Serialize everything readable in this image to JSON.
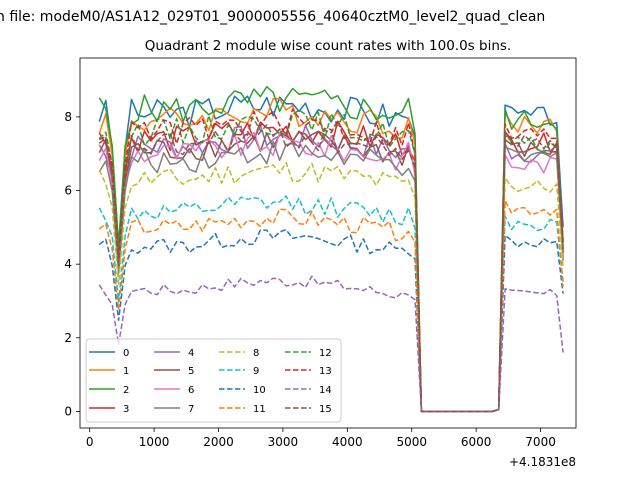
{
  "figure": {
    "suptitle": "n file: modeM0/AS1A12_029T01_9000005556_40640cztM0_level2_quad_clean",
    "offset_label": "+4.1831e8"
  },
  "chart_data": {
    "type": "line",
    "title": "Quadrant 2 module wise count rates with 100.0s bins.",
    "xlabel": "",
    "ylabel": "",
    "xlim": [
      -150,
      7550
    ],
    "ylim": [
      -0.45,
      9.6
    ],
    "x_offset": 418310000,
    "xticks": [
      0,
      1000,
      2000,
      3000,
      4000,
      5000,
      6000,
      7000
    ],
    "yticks": [
      0,
      2,
      4,
      6,
      8
    ],
    "grid": false,
    "legend": {
      "placement": "lower-left",
      "ncol": 4
    },
    "segments": [
      {
        "x_start": 150,
        "x_end": 5050,
        "n": 50
      },
      {
        "x_start": 5150,
        "x_end": 6250,
        "n": 12,
        "flat_zero": true
      },
      {
        "x_start": 6350,
        "x_end": 7350,
        "n": 11
      }
    ],
    "dip": {
      "x": 450,
      "factor": 0.55
    },
    "series": [
      {
        "name": "0",
        "color": "#1f77b4",
        "style": "solid",
        "level": 8.1,
        "p2_level": 8.0,
        "end_level": 5.0,
        "zero_end": 0.05
      },
      {
        "name": "1",
        "color": "#ff7f0e",
        "style": "solid",
        "level": 7.9,
        "p2_level": 7.8,
        "end_level": 4.5,
        "zero_end": 0.05
      },
      {
        "name": "2",
        "color": "#2ca02c",
        "style": "solid",
        "level": 8.2,
        "p2_level": 7.9,
        "end_level": 4.6,
        "zero_end": 0.05
      },
      {
        "name": "3",
        "color": "#d62728",
        "style": "solid",
        "level": 7.4,
        "p2_level": 7.3,
        "end_level": 4.4,
        "zero_end": 0.05
      },
      {
        "name": "4",
        "color": "#9467bd",
        "style": "solid",
        "level": 7.2,
        "p2_level": 7.0,
        "end_level": 4.3,
        "zero_end": 0.05
      },
      {
        "name": "5",
        "color": "#8c564b",
        "style": "solid",
        "level": 7.1,
        "p2_level": 7.1,
        "end_level": 4.3,
        "zero_end": 0.05
      },
      {
        "name": "6",
        "color": "#e377c2",
        "style": "solid",
        "level": 7.0,
        "p2_level": 6.7,
        "end_level": 4.2,
        "zero_end": 0.05
      },
      {
        "name": "7",
        "color": "#7f7f7f",
        "style": "solid",
        "level": 6.8,
        "p2_level": 6.9,
        "end_level": 4.1,
        "zero_end": 0.05
      },
      {
        "name": "8",
        "color": "#bcbd22",
        "style": "dashed",
        "level": 6.3,
        "p2_level": 6.1,
        "end_level": 3.9,
        "zero_end": 0.05
      },
      {
        "name": "9",
        "color": "#17becf",
        "style": "dashed",
        "level": 5.4,
        "p2_level": 5.1,
        "end_level": 3.5,
        "zero_end": 0.05
      },
      {
        "name": "10",
        "color": "#1f77b4",
        "style": "dashed",
        "level": 4.5,
        "p2_level": 4.6,
        "end_level": 3.2,
        "zero_end": 0.05
      },
      {
        "name": "11",
        "color": "#ff7f0e",
        "style": "dashed",
        "level": 5.0,
        "p2_level": 5.5,
        "end_level": 3.4,
        "zero_end": 0.05
      },
      {
        "name": "12",
        "color": "#2ca02c",
        "style": "dashed",
        "level": 7.6,
        "p2_level": 7.2,
        "end_level": 4.5,
        "zero_end": 0.05
      },
      {
        "name": "13",
        "color": "#d62728",
        "style": "dashed",
        "level": 7.6,
        "p2_level": 7.5,
        "end_level": 4.6,
        "zero_end": 0.05
      },
      {
        "name": "14",
        "color": "#9467bd",
        "style": "dashed",
        "level": 3.3,
        "p2_level": 3.2,
        "end_level": 1.6,
        "zero_end": 0.05
      },
      {
        "name": "15",
        "color": "#8c564b",
        "style": "dashed",
        "level": 7.2,
        "p2_level": 7.3,
        "end_level": 4.4,
        "zero_end": 0.05
      }
    ]
  }
}
